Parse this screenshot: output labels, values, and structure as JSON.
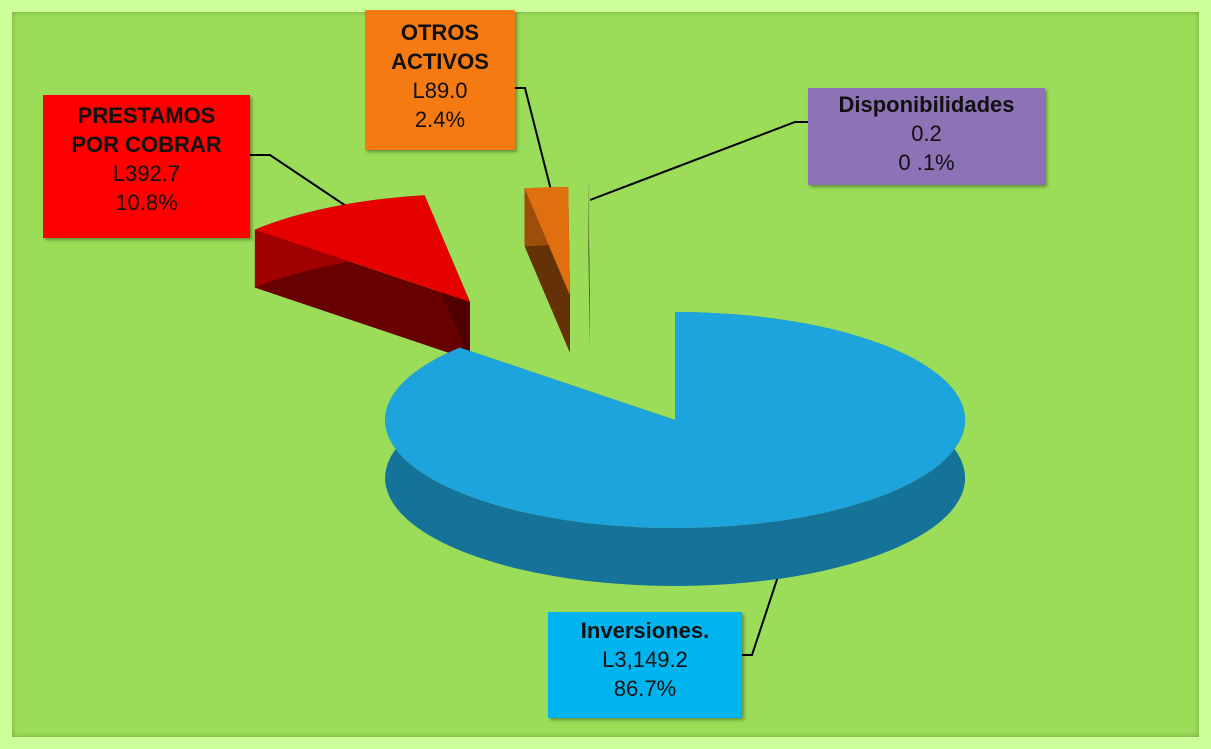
{
  "chart_data": {
    "type": "pie",
    "categories": [
      "Inversiones.",
      "PRESTAMOS POR COBRAR",
      "OTROS ACTIVOS",
      "Disponibilidades"
    ],
    "values": [
      86.7,
      10.8,
      2.4,
      0.1
    ],
    "value_labels": [
      "86.7%",
      "10.8%",
      "2.4%",
      "0 .1%"
    ],
    "amounts": [
      3149.2,
      392.7,
      89.0,
      0.2
    ],
    "amount_labels": [
      "L3,149.2",
      "L392.7",
      "L89.0",
      "0.2"
    ],
    "colors": [
      "#1ea4dc",
      "#e60000",
      "#e0700f",
      "#9acf6a"
    ],
    "label_colors": [
      "#00b5ef",
      "#ff0000",
      "#f57a12",
      "#8e72b6"
    ]
  }
}
